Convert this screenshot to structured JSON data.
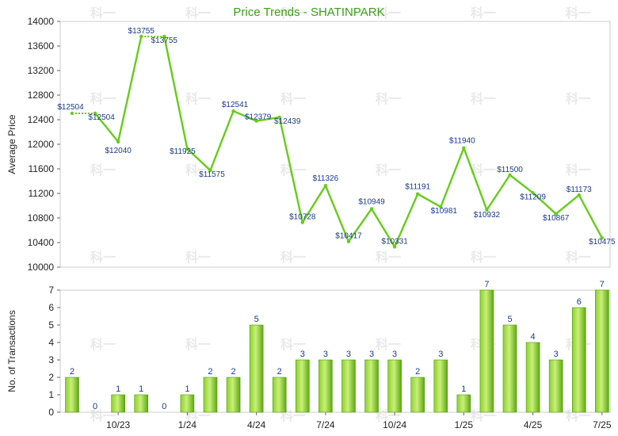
{
  "title": "Price Trends - SHATINPARK",
  "chart_data": [
    {
      "type": "line",
      "title": "Price Trends - SHATINPARK",
      "ylabel": "Average Price",
      "ylim": [
        10000,
        14000
      ],
      "yticks": [
        10000,
        10400,
        10800,
        11200,
        11600,
        12000,
        12400,
        12800,
        13200,
        13600,
        14000
      ],
      "value_prefix": "$",
      "line_color": "#66cc1a",
      "series": [
        {
          "values": [
            12504,
            12504,
            12040,
            13755,
            13755,
            11925,
            11575,
            12541,
            12379,
            12439,
            10728,
            11326,
            10417,
            10949,
            10331,
            11191,
            10981,
            11940,
            10932,
            11500,
            11209,
            10867,
            11173,
            10475
          ],
          "slots": [
            0,
            1,
            2,
            3,
            4,
            5,
            6,
            7,
            8,
            9,
            10,
            11,
            12,
            13,
            14,
            15,
            16,
            17,
            18,
            19,
            20,
            21,
            22,
            23
          ],
          "carried_forward": [
            false,
            true,
            false,
            false,
            true,
            false,
            false,
            false,
            false,
            false,
            false,
            false,
            false,
            false,
            false,
            false,
            false,
            false,
            false,
            false,
            false,
            false,
            false,
            false
          ]
        }
      ],
      "labels": [
        "$12504",
        "$12504",
        "$12040",
        "$13755",
        "$13755",
        "$11925",
        "$11575",
        "$12541",
        "$12379",
        "$12439",
        "$10728",
        "$11326",
        "$10417",
        "$10949",
        "$10331",
        "$11191",
        "$10981",
        "$11940",
        "$10932",
        "$11500",
        "$11209",
        "$10867",
        "$11173",
        "$10475"
      ]
    },
    {
      "type": "bar",
      "ylabel": "No. of Transactions",
      "ylim": [
        0,
        7
      ],
      "yticks": [
        0,
        1,
        2,
        3,
        4,
        5,
        6,
        7
      ],
      "bar_color": "#66cc1a",
      "values": [
        2,
        0,
        1,
        1,
        0,
        1,
        2,
        2,
        5,
        2,
        3,
        3,
        3,
        3,
        3,
        2,
        3,
        1,
        7,
        5,
        4,
        3,
        6,
        7
      ],
      "x_tick_labels": [
        {
          "slot": 2,
          "label": "10/23"
        },
        {
          "slot": 5,
          "label": "1/24"
        },
        {
          "slot": 8,
          "label": "4/24"
        },
        {
          "slot": 11,
          "label": "7/24"
        },
        {
          "slot": 14,
          "label": "10/24"
        },
        {
          "slot": 17,
          "label": "1/25"
        },
        {
          "slot": 20,
          "label": "4/25"
        },
        {
          "slot": 23,
          "label": "7/25"
        }
      ]
    }
  ],
  "watermark": "科一"
}
